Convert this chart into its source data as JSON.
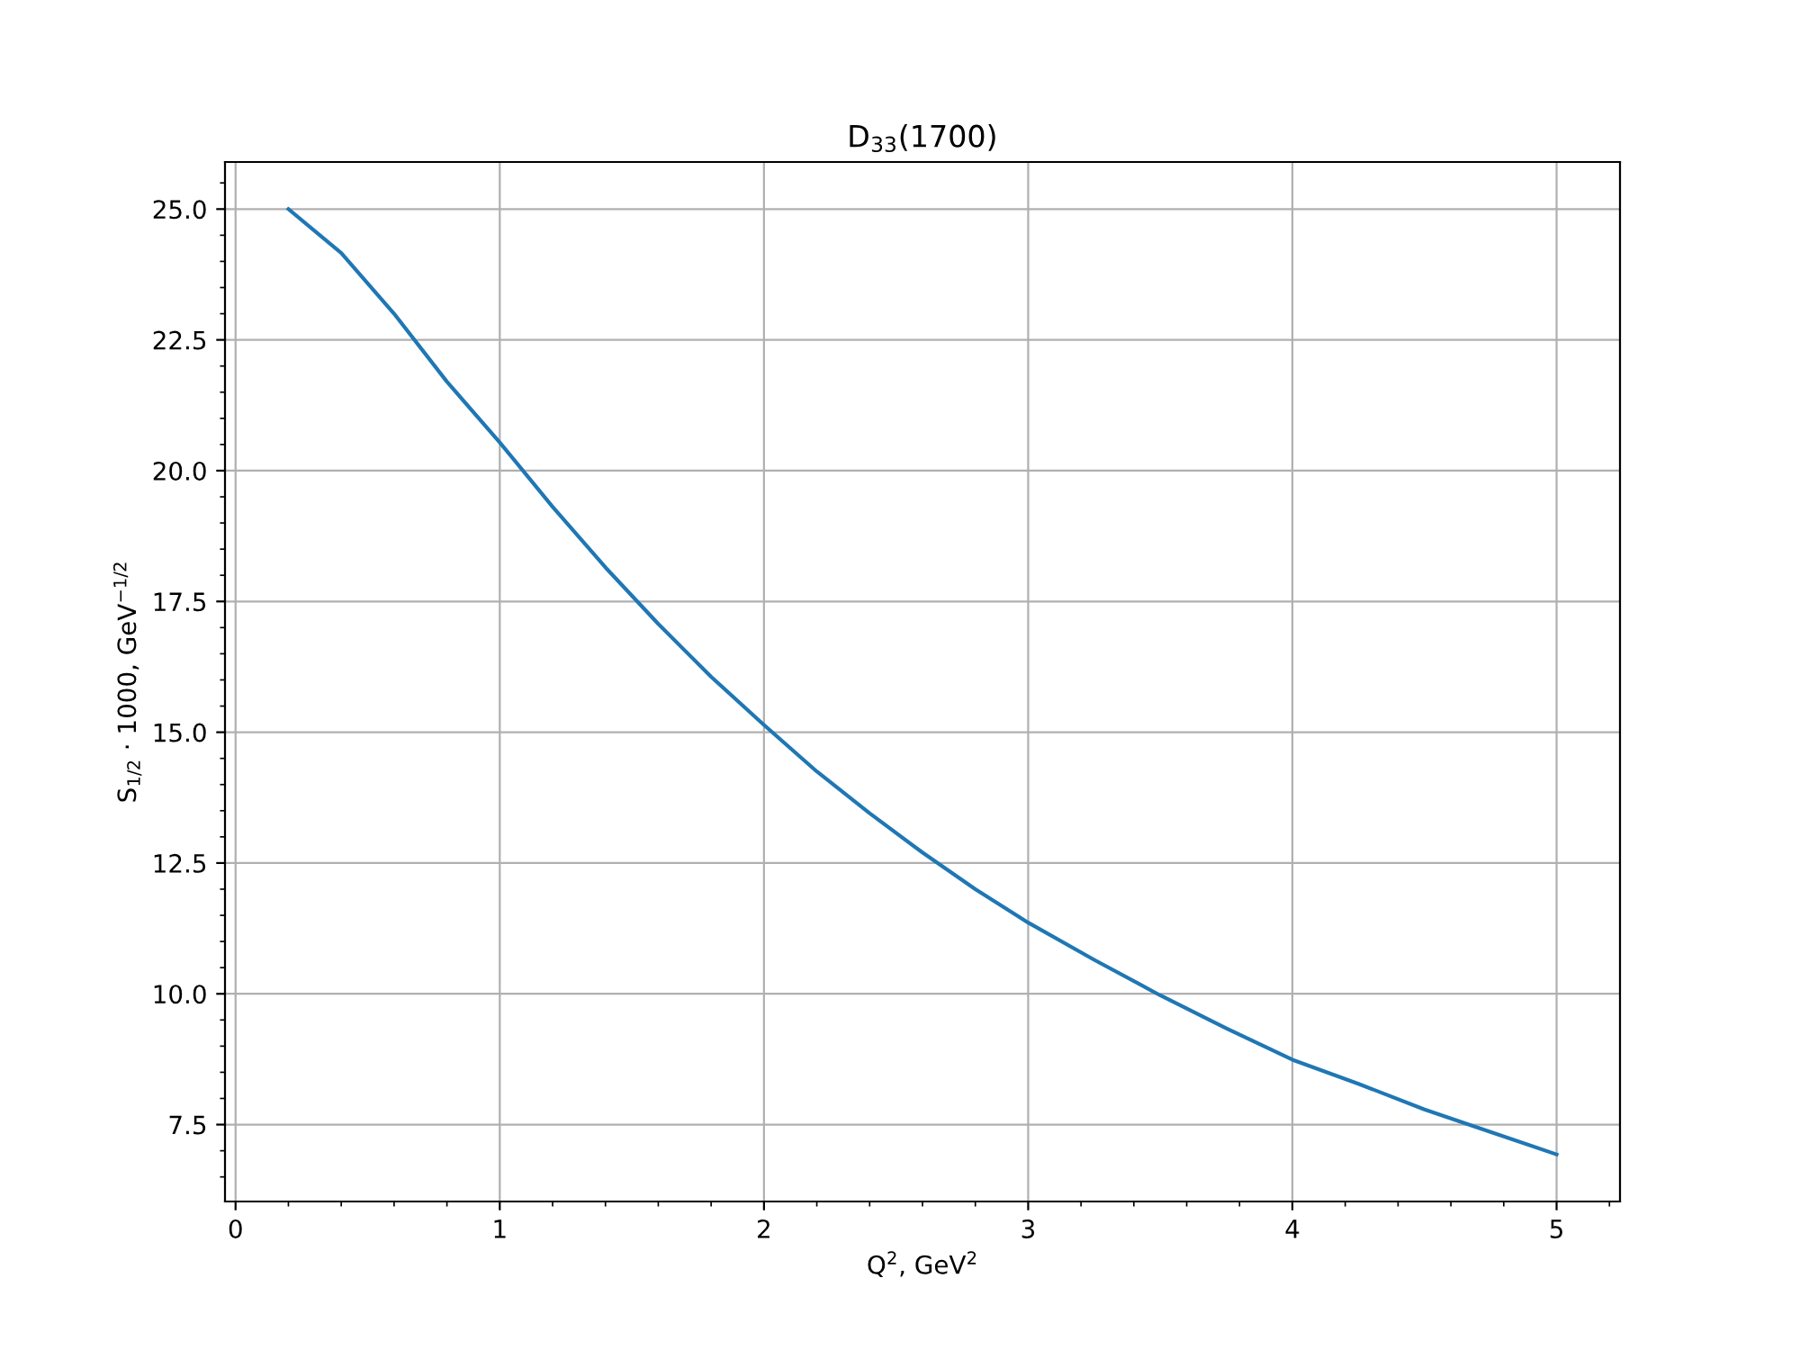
{
  "chart_data": {
    "type": "line",
    "title": "D$_{33}$(1700)",
    "xlabel": "Q$^{2}$, GeV$^{2}$",
    "ylabel": "S$_{1/2}$ · 1000, GeV$^{−1/2}$",
    "xlim": [
      -0.04,
      5.24
    ],
    "ylim": [
      6.03,
      25.9
    ],
    "xticks": [
      0,
      1,
      2,
      3,
      4,
      5
    ],
    "yticks": [
      {
        "value": 7.5,
        "label": "7.5"
      },
      {
        "value": 10,
        "label": "10.0"
      },
      {
        "value": 12.5,
        "label": "12.5"
      },
      {
        "value": 15,
        "label": "15.0"
      },
      {
        "value": 17.5,
        "label": "17.5"
      },
      {
        "value": 20,
        "label": "20.0"
      },
      {
        "value": 22.5,
        "label": "22.5"
      },
      {
        "value": 25,
        "label": "25.0"
      }
    ],
    "grid": true,
    "marker": "none",
    "line_style": "solid",
    "x": [
      0.2,
      0.4,
      0.6,
      0.8,
      1.0,
      1.2,
      1.4,
      1.6,
      1.8,
      2.0,
      2.2,
      2.4,
      2.6,
      2.8,
      3.0,
      3.25,
      3.5,
      3.75,
      4.0,
      4.25,
      4.5,
      4.75,
      5.0
    ],
    "series": [
      {
        "color": "#1f77b4",
        "values": [
          25.0,
          24.16,
          23.0,
          21.7,
          20.54,
          19.31,
          18.15,
          17.07,
          16.06,
          15.14,
          14.25,
          13.45,
          12.7,
          12.0,
          11.36,
          10.65,
          9.97,
          9.34,
          8.74,
          8.28,
          7.79,
          7.36,
          6.93
        ]
      }
    ]
  }
}
